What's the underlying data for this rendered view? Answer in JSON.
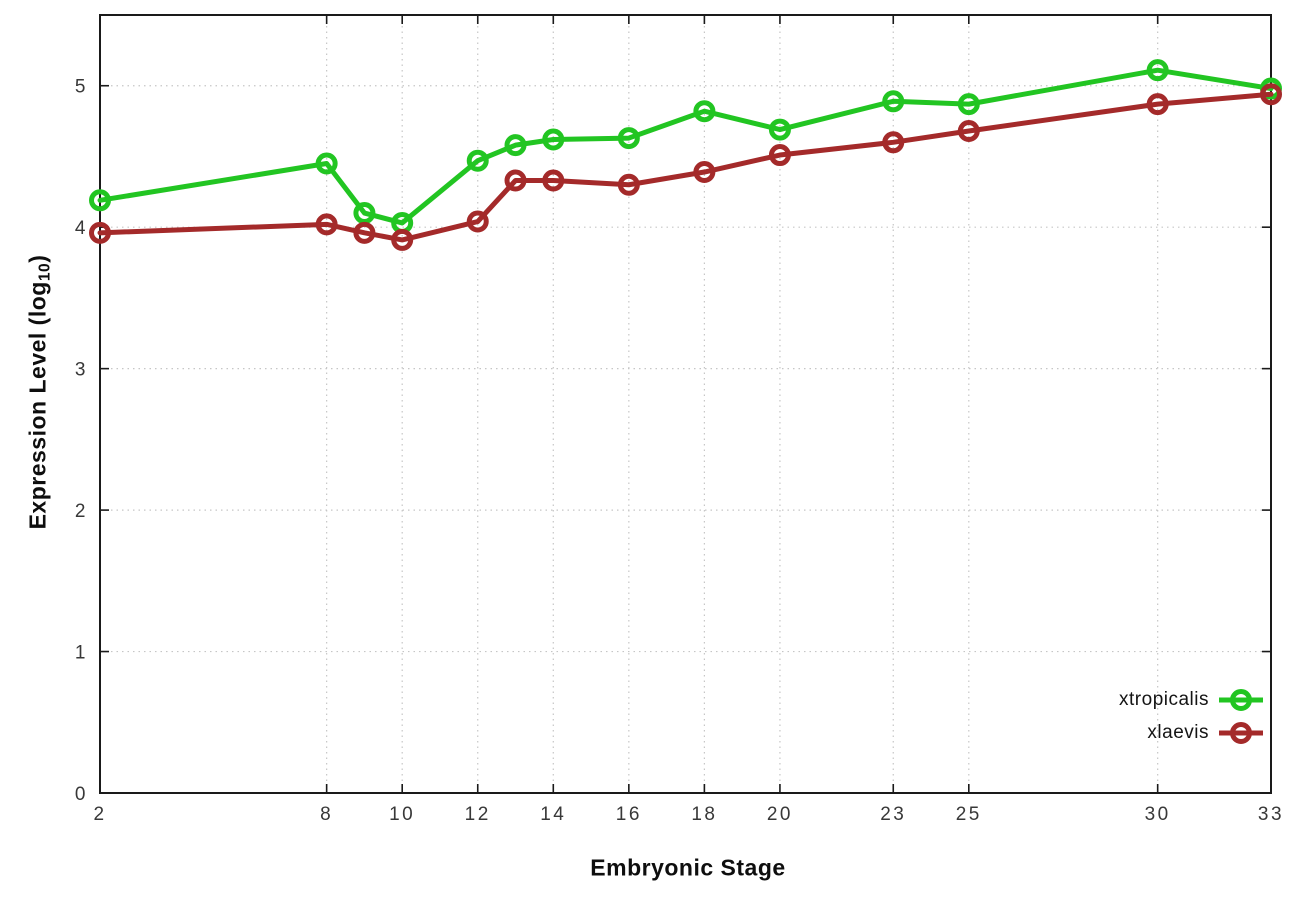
{
  "chart_data": {
    "type": "line",
    "title": "",
    "xlabel": "Embryonic Stage",
    "ylabel": "Expression Level (log10)",
    "ylabel_parts": {
      "main": "Expression Level (log",
      "sub": "10",
      "close": ")"
    },
    "x": [
      2,
      8,
      9,
      10,
      12,
      13,
      14,
      16,
      18,
      20,
      23,
      25,
      30,
      33
    ],
    "series": [
      {
        "name": "xtropicalis",
        "color": "#22c522",
        "values": [
          4.19,
          4.45,
          4.1,
          4.03,
          4.47,
          4.58,
          4.62,
          4.63,
          4.82,
          4.69,
          4.89,
          4.87,
          5.11,
          4.98
        ]
      },
      {
        "name": "xlaevis",
        "color": "#a42a2a",
        "values": [
          3.96,
          4.02,
          3.96,
          3.91,
          4.04,
          4.33,
          4.33,
          4.3,
          4.39,
          4.51,
          4.6,
          4.68,
          4.87,
          4.94
        ]
      }
    ],
    "xtick_values": [
      2,
      8,
      10,
      12,
      14,
      16,
      18,
      20,
      23,
      25,
      30,
      33
    ],
    "xtick_labels": [
      "2",
      "8",
      "10",
      "12",
      "14",
      "16",
      "18",
      "20",
      "23",
      "25",
      "30",
      "33"
    ],
    "ytick_values": [
      0,
      1,
      2,
      3,
      4,
      5
    ],
    "ytick_labels": [
      "0",
      "1",
      "2",
      "3",
      "4",
      "5"
    ],
    "xlim": [
      2,
      33
    ],
    "ylim": [
      0,
      5.5
    ],
    "grid": true,
    "legend_position": "inside-right-bottom",
    "marker": "open-circle",
    "colors": {
      "grid": "#c6c6c6",
      "border": "#1a1a1a",
      "tick_text": "#383838"
    }
  }
}
